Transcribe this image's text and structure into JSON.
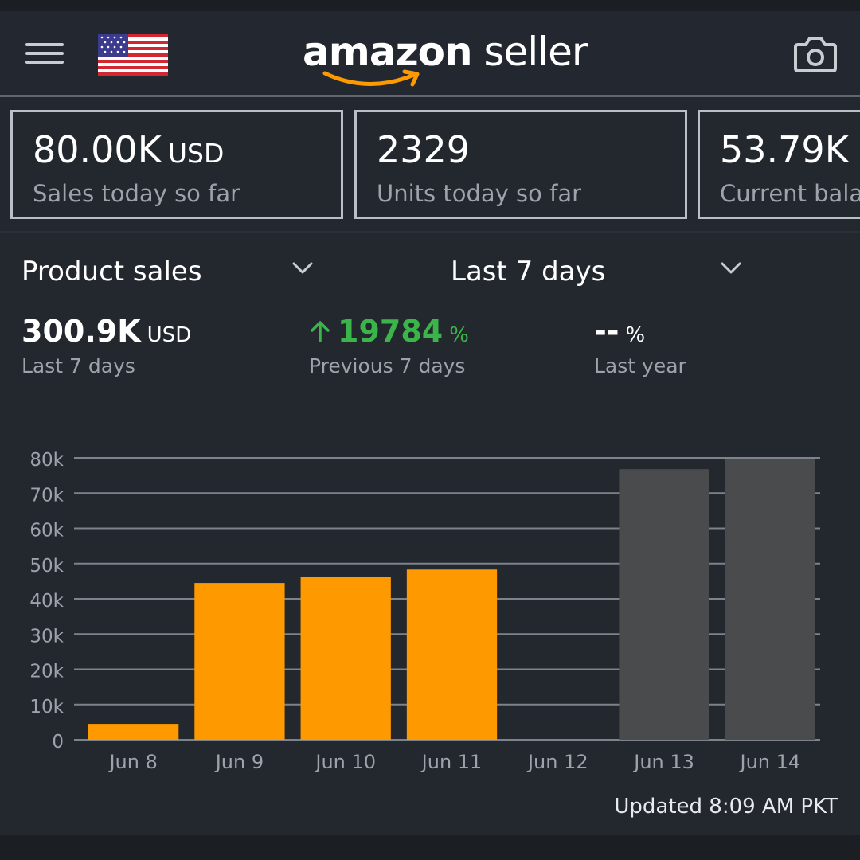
{
  "header": {
    "logo_amazon": "amazon",
    "logo_seller": "seller",
    "menu_icon": "hamburger-menu-icon",
    "flag_icon": "us-flag-icon",
    "camera_icon": "camera-icon"
  },
  "kpis": [
    {
      "value": "80.00K",
      "unit": "USD",
      "label": "Sales today so far"
    },
    {
      "value": "2329",
      "unit": "",
      "label": "Units today so far"
    },
    {
      "value": "53.79K",
      "unit": "",
      "label": "Current bala"
    }
  ],
  "selectors": {
    "metric": "Product sales",
    "period": "Last 7 days"
  },
  "stats": {
    "total_value": "300.9K",
    "total_unit": "USD",
    "total_label": "Last 7 days",
    "change_value": "19784",
    "change_unit": "%",
    "change_label": "Previous 7 days",
    "last_year_value": "--",
    "last_year_unit": "%",
    "last_year_label": "Last year"
  },
  "colors": {
    "current_period": "#ff9900",
    "previous_period": "#4a4b4d",
    "positive_change": "#3bb54a",
    "background": "#23272e"
  },
  "chart_data": {
    "type": "bar",
    "categories": [
      "Jun 8",
      "Jun 9",
      "Jun 10",
      "Jun 11",
      "Jun 12",
      "Jun 13",
      "Jun 14"
    ],
    "series": [
      {
        "values": [
          4500,
          44500,
          46300,
          48300,
          null,
          null,
          null
        ],
        "color": "#ff9900"
      },
      {
        "values": [
          null,
          null,
          null,
          null,
          null,
          76800,
          79700
        ],
        "color": "#4a4b4d"
      }
    ],
    "yticks": [
      "0",
      "10k",
      "20k",
      "30k",
      "40k",
      "50k",
      "60k",
      "70k",
      "80k"
    ],
    "ylim": [
      0,
      80000
    ],
    "grid": true
  },
  "footer": {
    "updated": "Updated 8:09 AM PKT"
  }
}
